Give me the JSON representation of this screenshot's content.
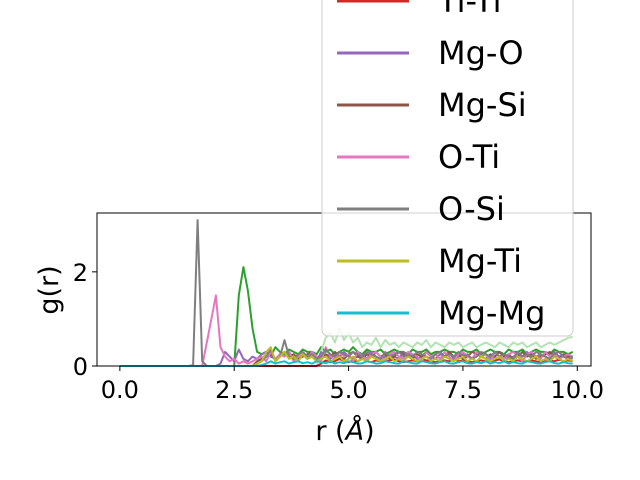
{
  "chart_data": {
    "type": "line",
    "xlabel": "r (",
    "xlabel_unit": "Å",
    "xlabel_close": ")",
    "ylabel": "g(r)",
    "xlim": [
      -0.5,
      10.3
    ],
    "ylim": [
      0,
      3.25
    ],
    "xticks": [
      0.0,
      2.5,
      5.0,
      7.5,
      10.0
    ],
    "xtick_labels": [
      "0.0",
      "2.5",
      "5.0",
      "7.5",
      "10.0"
    ],
    "yticks": [
      0,
      2
    ],
    "ytick_labels": [
      "0",
      "2"
    ],
    "grid": false,
    "legend_position": "upper-right, extends above plot area",
    "x": [
      0.0,
      0.1,
      0.2,
      0.3,
      0.4,
      0.5,
      0.6,
      0.7,
      0.8,
      0.9,
      1.0,
      1.1,
      1.2,
      1.3,
      1.4,
      1.5,
      1.6,
      1.7,
      1.8,
      1.9,
      2.0,
      2.1,
      2.2,
      2.3,
      2.4,
      2.5,
      2.6,
      2.7,
      2.8,
      2.9,
      3.0,
      3.1,
      3.2,
      3.3,
      3.4,
      3.5,
      3.6,
      3.7,
      3.8,
      3.9,
      4.0,
      4.1,
      4.2,
      4.3,
      4.4,
      4.5,
      4.6,
      4.7,
      4.8,
      4.9,
      5.0,
      5.1,
      5.2,
      5.3,
      5.4,
      5.5,
      5.6,
      5.7,
      5.8,
      5.9,
      6.0,
      6.1,
      6.2,
      6.3,
      6.4,
      6.5,
      6.6,
      6.7,
      6.8,
      6.9,
      7.0,
      7.1,
      7.2,
      7.3,
      7.4,
      7.5,
      7.6,
      7.7,
      7.8,
      7.9,
      8.0,
      8.1,
      8.2,
      8.3,
      8.4,
      8.5,
      8.6,
      8.7,
      8.8,
      8.9,
      9.0,
      9.1,
      9.2,
      9.3,
      9.4,
      9.5,
      9.6,
      9.7,
      9.8,
      9.9
    ],
    "series": [
      {
        "name": "Ti-Ti",
        "color": "#d62728",
        "values": [
          0,
          0,
          0,
          0,
          0,
          0,
          0,
          0,
          0,
          0,
          0,
          0,
          0,
          0,
          0,
          0,
          0,
          0,
          0,
          0,
          0,
          0,
          0,
          0,
          0,
          0,
          0,
          0,
          0,
          0,
          0,
          0,
          0,
          0,
          0,
          0,
          0,
          0,
          0,
          0,
          0,
          0,
          0,
          0,
          0.05,
          0.12,
          0.08,
          0.1,
          0.15,
          0.1,
          0.08,
          0.12,
          0.1,
          0.15,
          0.1,
          0.08,
          0.12,
          0.1,
          0.1,
          0.12,
          0.14,
          0.1,
          0.08,
          0.1,
          0.12,
          0.1,
          0.14,
          0.12,
          0.1,
          0.08,
          0.1,
          0.12,
          0.1,
          0.15,
          0.1,
          0.12,
          0.1,
          0.08,
          0.1,
          0.12,
          0.1,
          0.1,
          0.12,
          0.14,
          0.1,
          0.08,
          0.1,
          0.12,
          0.1,
          0.1,
          0.12,
          0.1,
          0.08,
          0.1,
          0.12,
          0.1,
          0.14,
          0.1,
          0.12,
          0.1
        ]
      },
      {
        "name": "Mg-O",
        "color": "#9467bd",
        "values": [
          0,
          0,
          0,
          0,
          0,
          0,
          0,
          0,
          0,
          0,
          0,
          0,
          0,
          0,
          0,
          0,
          0,
          0,
          0,
          0,
          0,
          0,
          0.05,
          0.3,
          0.2,
          0.1,
          0.35,
          0.15,
          0.1,
          0.2,
          0.15,
          0.25,
          0.3,
          0.2,
          0.15,
          0.25,
          0.2,
          0.3,
          0.15,
          0.2,
          0.25,
          0.15,
          0.2,
          0.1,
          0.3,
          0.2,
          0.15,
          0.25,
          0.2,
          0.3,
          0.2,
          0.15,
          0.2,
          0.25,
          0.15,
          0.3,
          0.2,
          0.15,
          0.2,
          0.25,
          0.2,
          0.15,
          0.3,
          0.2,
          0.25,
          0.15,
          0.2,
          0.3,
          0.2,
          0.15,
          0.25,
          0.2,
          0.3,
          0.15,
          0.2,
          0.25,
          0.2,
          0.15,
          0.3,
          0.2,
          0.25,
          0.15,
          0.2,
          0.3,
          0.2,
          0.15,
          0.2,
          0.25,
          0.2,
          0.3,
          0.15,
          0.2,
          0.25,
          0.2,
          0.15,
          0.3,
          0.2,
          0.25,
          0.2,
          0.15
        ]
      },
      {
        "name": "Mg-Si",
        "color": "#8c564b",
        "values": [
          0,
          0,
          0,
          0,
          0,
          0,
          0,
          0,
          0,
          0,
          0,
          0,
          0,
          0,
          0,
          0,
          0,
          0,
          0,
          0,
          0,
          0,
          0,
          0,
          0,
          0,
          0,
          0,
          0,
          0,
          0.1,
          0.15,
          0.2,
          0.25,
          0.15,
          0.2,
          0.3,
          0.2,
          0.25,
          0.15,
          0.2,
          0.25,
          0.3,
          0.2,
          0.15,
          0.25,
          0.2,
          0.3,
          0.2,
          0.15,
          0.25,
          0.3,
          0.2,
          0.15,
          0.25,
          0.2,
          0.3,
          0.2,
          0.25,
          0.15,
          0.2,
          0.3,
          0.25,
          0.2,
          0.15,
          0.25,
          0.2,
          0.3,
          0.2,
          0.25,
          0.15,
          0.2,
          0.3,
          0.2,
          0.25,
          0.15,
          0.2,
          0.3,
          0.25,
          0.2,
          0.15,
          0.25,
          0.2,
          0.3,
          0.2,
          0.25,
          0.15,
          0.2,
          0.3,
          0.2,
          0.25,
          0.15,
          0.2,
          0.25,
          0.3,
          0.2,
          0.15,
          0.25,
          0.2,
          0.2
        ]
      },
      {
        "name": "O-Ti",
        "color": "#e377c2",
        "values": [
          0,
          0,
          0,
          0,
          0,
          0,
          0,
          0,
          0,
          0,
          0,
          0,
          0,
          0,
          0,
          0,
          0,
          0,
          0,
          0.5,
          1.0,
          1.5,
          0.4,
          0.2,
          0.1,
          0.15,
          0.05,
          0.1,
          0.05,
          0.1,
          0.15,
          0.2,
          0.1,
          0.3,
          0.15,
          0.25,
          0.2,
          0.3,
          0.1,
          0.2,
          0.25,
          0.15,
          0.3,
          0.2,
          0.1,
          0.4,
          0.2,
          0.15,
          0.3,
          0.2,
          0.25,
          0.1,
          0.3,
          0.2,
          0.15,
          0.25,
          0.3,
          0.2,
          0.1,
          0.25,
          0.3,
          0.2,
          0.15,
          0.3,
          0.25,
          0.2,
          0.1,
          0.3,
          0.2,
          0.25,
          0.15,
          0.3,
          0.2,
          0.1,
          0.25,
          0.3,
          0.2,
          0.15,
          0.3,
          0.2,
          0.25,
          0.1,
          0.3,
          0.2,
          0.15,
          0.25,
          0.3,
          0.2,
          0.1,
          0.25,
          0.3,
          0.2,
          0.15,
          0.3,
          0.2,
          0.25,
          0.15,
          0.2,
          0.25,
          0.2
        ]
      },
      {
        "name": "O-Si",
        "color": "#7f7f7f",
        "values": [
          0,
          0,
          0,
          0,
          0,
          0,
          0,
          0,
          0,
          0,
          0,
          0,
          0,
          0,
          0,
          0,
          0.02,
          3.1,
          0.1,
          0,
          0,
          0,
          0,
          0,
          0,
          0,
          0,
          0,
          0,
          0,
          0.05,
          0.1,
          0.2,
          0.35,
          0.1,
          0.2,
          0.55,
          0.2,
          0.15,
          0.25,
          0.3,
          0.2,
          0.25,
          0.15,
          0.2,
          0.35,
          0.25,
          0.2,
          0.3,
          0.25,
          0.2,
          0.3,
          0.25,
          0.2,
          0.3,
          0.25,
          0.2,
          0.15,
          0.3,
          0.2,
          0.25,
          0.3,
          0.2,
          0.25,
          0.2,
          0.3,
          0.25,
          0.2,
          0.15,
          0.25,
          0.3,
          0.2,
          0.25,
          0.2,
          0.3,
          0.2,
          0.25,
          0.15,
          0.2,
          0.3,
          0.25,
          0.2,
          0.3,
          0.2,
          0.25,
          0.2,
          0.15,
          0.3,
          0.2,
          0.25,
          0.2,
          0.3,
          0.25,
          0.2,
          0.15,
          0.25,
          0.3,
          0.2,
          0.15,
          0.2
        ]
      },
      {
        "name": "Mg-Ti",
        "color": "#bcbd22",
        "values": [
          0,
          0,
          0,
          0,
          0,
          0,
          0,
          0,
          0,
          0,
          0,
          0,
          0,
          0,
          0,
          0,
          0,
          0,
          0,
          0,
          0,
          0,
          0,
          0,
          0,
          0,
          0,
          0,
          0,
          0,
          0.05,
          0.1,
          0.3,
          0.4,
          0.1,
          0.2,
          0.3,
          0.15,
          0.2,
          0.1,
          0.25,
          0.15,
          0.2,
          0.1,
          0.15,
          0.2,
          0.1,
          0.15,
          0.2,
          0.1,
          0.15,
          0.2,
          0.1,
          0.15,
          0.1,
          0.2,
          0.15,
          0.1,
          0.15,
          0.2,
          0.1,
          0.15,
          0.1,
          0.2,
          0.15,
          0.1,
          0.15,
          0.2,
          0.1,
          0.15,
          0.1,
          0.2,
          0.15,
          0.1,
          0.15,
          0.2,
          0.1,
          0.15,
          0.1,
          0.2,
          0.15,
          0.1,
          0.15,
          0.2,
          0.1,
          0.15,
          0.1,
          0.2,
          0.15,
          0.1,
          0.15,
          0.2,
          0.1,
          0.15,
          0.1,
          0.2,
          0.15,
          0.1,
          0.15,
          0.1
        ]
      },
      {
        "name": "Mg-Mg",
        "color": "#17becf",
        "values": [
          0,
          0,
          0,
          0,
          0,
          0,
          0,
          0,
          0,
          0,
          0,
          0,
          0,
          0,
          0,
          0,
          0,
          0,
          0,
          0,
          0,
          0,
          0,
          0,
          0,
          0,
          0,
          0,
          0,
          0,
          0,
          0.02,
          0.05,
          0.1,
          0.05,
          0.08,
          0.1,
          0.05,
          0.08,
          0.1,
          0.06,
          0.08,
          0.05,
          0.1,
          0.08,
          0.06,
          0.1,
          0.05,
          0.08,
          0.06,
          0.1,
          0.08,
          0.05,
          0.06,
          0.1,
          0.08,
          0.05,
          0.06,
          0.1,
          0.08,
          0.06,
          0.05,
          0.1,
          0.08,
          0.06,
          0.05,
          0.1,
          0.08,
          0.06,
          0.05,
          0.08,
          0.1,
          0.06,
          0.05,
          0.08,
          0.1,
          0.06,
          0.05,
          0.08,
          0.06,
          0.1,
          0.05,
          0.08,
          0.06,
          0.1,
          0.05,
          0.08,
          0.06,
          0.05,
          0.1,
          0.08,
          0.06,
          0.05,
          0.08,
          0.1,
          0.06,
          0.05,
          0.08,
          0.06,
          0.05
        ]
      },
      {
        "name": "",
        "color": "#2ca02c",
        "values": [
          0,
          0,
          0,
          0,
          0,
          0,
          0,
          0,
          0,
          0,
          0,
          0,
          0,
          0,
          0,
          0,
          0,
          0,
          0,
          0,
          0,
          0,
          0,
          0,
          0,
          0,
          1.5,
          2.1,
          1.6,
          0.8,
          0.3,
          0.25,
          0.3,
          0.2,
          0.4,
          0.3,
          0.25,
          0.35,
          0.3,
          0.25,
          0.35,
          0.3,
          0.3,
          0.25,
          0.4,
          0.3,
          0.35,
          0.25,
          0.3,
          0.35,
          0.3,
          0.4,
          0.3,
          0.25,
          0.35,
          0.3,
          0.3,
          0.35,
          0.25,
          0.3,
          0.35,
          0.3,
          0.3,
          0.25,
          0.35,
          0.3,
          0.3,
          0.35,
          0.25,
          0.3,
          0.3,
          0.35,
          0.3,
          0.3,
          0.25,
          0.35,
          0.3,
          0.3,
          0.35,
          0.25,
          0.3,
          0.35,
          0.3,
          0.3,
          0.25,
          0.35,
          0.3,
          0.3,
          0.35,
          0.25,
          0.3,
          0.35,
          0.3,
          0.3,
          0.25,
          0.35,
          0.3,
          0.3,
          0.25,
          0.3
        ]
      },
      {
        "name": "",
        "color": "#b3e2b3",
        "values": [
          0,
          0,
          0,
          0,
          0,
          0,
          0,
          0,
          0,
          0,
          0,
          0,
          0,
          0,
          0,
          0,
          0,
          0,
          0,
          0,
          0,
          0,
          0,
          0,
          0,
          0,
          0,
          0,
          0,
          0,
          0,
          0,
          0,
          0,
          0,
          0,
          0,
          0,
          0,
          0,
          0,
          0,
          0,
          0,
          0.3,
          0.6,
          0.7,
          0.5,
          0.8,
          0.55,
          0.7,
          0.5,
          0.6,
          0.4,
          0.5,
          0.45,
          0.6,
          0.4,
          0.55,
          0.45,
          0.5,
          0.4,
          0.5,
          0.45,
          0.4,
          0.5,
          0.45,
          0.55,
          0.4,
          0.5,
          0.45,
          0.4,
          0.5,
          0.45,
          0.5,
          0.4,
          0.45,
          0.5,
          0.4,
          0.45,
          0.5,
          0.45,
          0.4,
          0.5,
          0.45,
          0.4,
          0.5,
          0.45,
          0.5,
          0.4,
          0.45,
          0.5,
          0.4,
          0.45,
          0.5,
          0.45,
          0.5,
          0.55,
          0.6,
          0.62
        ]
      }
    ]
  }
}
